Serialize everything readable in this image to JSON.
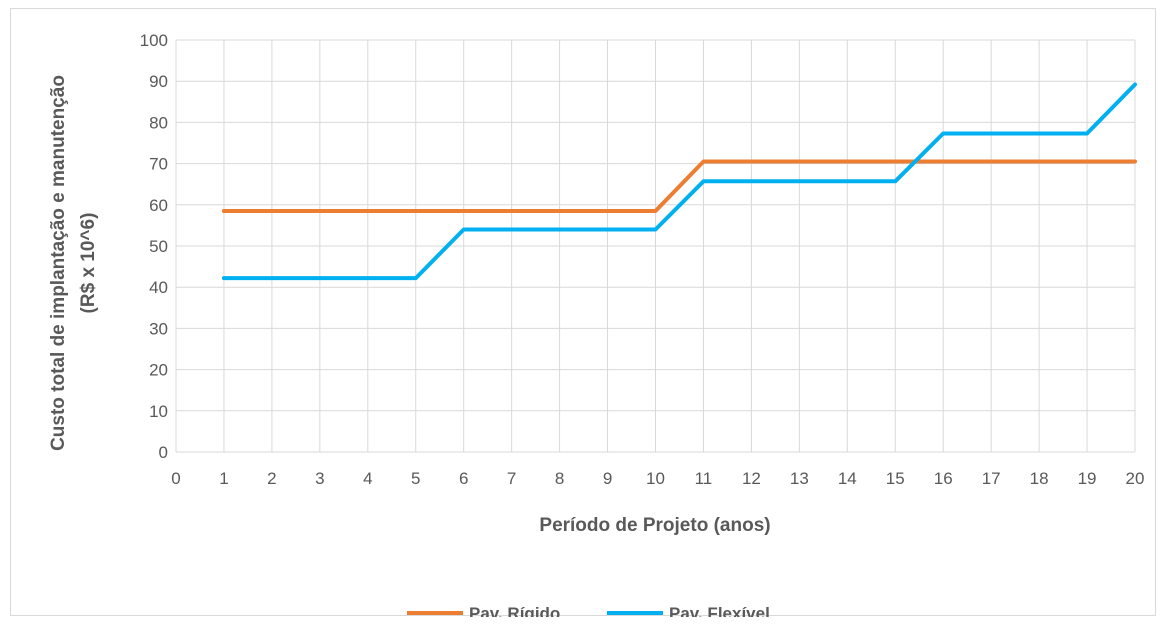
{
  "chart_data": {
    "type": "line",
    "title": "",
    "xlabel": "Período de Projeto (anos)",
    "ylabel_lines": [
      "Custo total de implantação e manutenção",
      "(R$ x 10^6)"
    ],
    "xlim": [
      0,
      20
    ],
    "ylim": [
      0,
      100
    ],
    "x_ticks": [
      0,
      1,
      2,
      3,
      4,
      5,
      6,
      7,
      8,
      9,
      10,
      11,
      12,
      13,
      14,
      15,
      16,
      17,
      18,
      19,
      20
    ],
    "y_ticks": [
      0,
      10,
      20,
      30,
      40,
      50,
      60,
      70,
      80,
      90,
      100
    ],
    "grid": true,
    "legend_position": "bottom",
    "series": [
      {
        "name": "Pav. Rígido",
        "color": "#ED7D31",
        "x": [
          1,
          2,
          3,
          4,
          5,
          6,
          7,
          8,
          9,
          10,
          11,
          12,
          13,
          14,
          15,
          16,
          17,
          18,
          19,
          20
        ],
        "values": [
          58.5,
          58.5,
          58.5,
          58.5,
          58.5,
          58.5,
          58.5,
          58.5,
          58.5,
          58.5,
          70.5,
          70.5,
          70.5,
          70.5,
          70.5,
          70.5,
          70.5,
          70.5,
          70.5,
          70.5
        ]
      },
      {
        "name": "Pav. Flexível",
        "color": "#00B0F0",
        "x": [
          1,
          2,
          3,
          4,
          5,
          6,
          7,
          8,
          9,
          10,
          11,
          12,
          13,
          14,
          15,
          16,
          17,
          18,
          19,
          20
        ],
        "values": [
          42.2,
          42.2,
          42.2,
          42.2,
          42.2,
          54,
          54,
          54,
          54,
          54,
          65.7,
          65.7,
          65.7,
          65.7,
          65.7,
          77.3,
          77.3,
          77.3,
          77.3,
          89.2
        ]
      }
    ]
  }
}
